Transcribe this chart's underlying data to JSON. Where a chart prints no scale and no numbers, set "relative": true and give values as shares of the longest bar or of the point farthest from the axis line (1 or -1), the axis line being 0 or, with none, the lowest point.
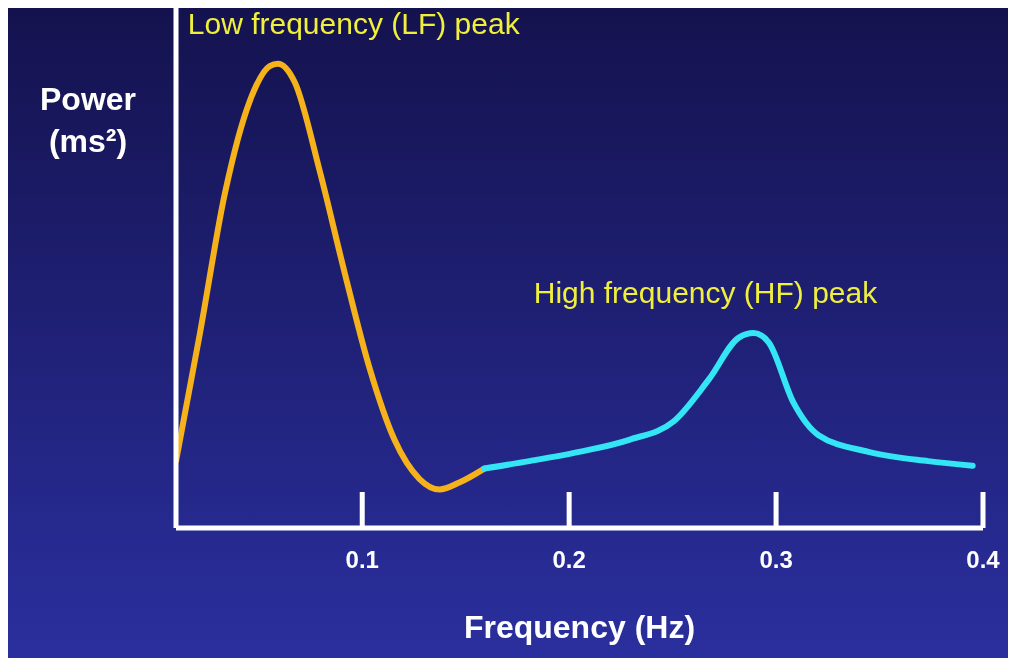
{
  "chart_data": {
    "type": "line",
    "relative": true,
    "xlabel": "Frequency (Hz)",
    "ylabel": "Power (ms²)",
    "xlim": [
      0.01,
      0.4
    ],
    "xticks": [
      0.1,
      0.2,
      0.3,
      0.4
    ],
    "series": [
      {
        "color": "#f5b21a",
        "x": [
          0.01,
          0.0216,
          0.0336,
          0.0457,
          0.0553,
          0.0592,
          0.0674,
          0.0794,
          0.0915,
          0.1035,
          0.1156,
          0.1276,
          0.1373,
          0.1469,
          0.159
        ],
        "values": [
          0.144,
          0.42,
          0.72,
          0.92,
          0.995,
          1,
          0.96,
          0.77,
          0.55,
          0.345,
          0.19,
          0.106,
          0.083,
          0.098,
          0.128
        ]
      },
      {
        "color": "#33e5f5",
        "x": [
          0.159,
          0.1807,
          0.2048,
          0.229,
          0.2506,
          0.2675,
          0.282,
          0.2892,
          0.2964,
          0.3084,
          0.3205,
          0.3446,
          0.3735,
          0.395
        ],
        "values": [
          0.128,
          0.144,
          0.164,
          0.19,
          0.23,
          0.32,
          0.41,
          0.42,
          0.4,
          0.27,
          0.2,
          0.164,
          0.144,
          0.134
        ]
      }
    ],
    "annotations": [
      {
        "text": "Low frequency (LF) peak",
        "x": 0.0592,
        "y": 1
      },
      {
        "text": "High frequency (HF) peak",
        "x": 0.2892,
        "y": 0.42
      }
    ]
  }
}
